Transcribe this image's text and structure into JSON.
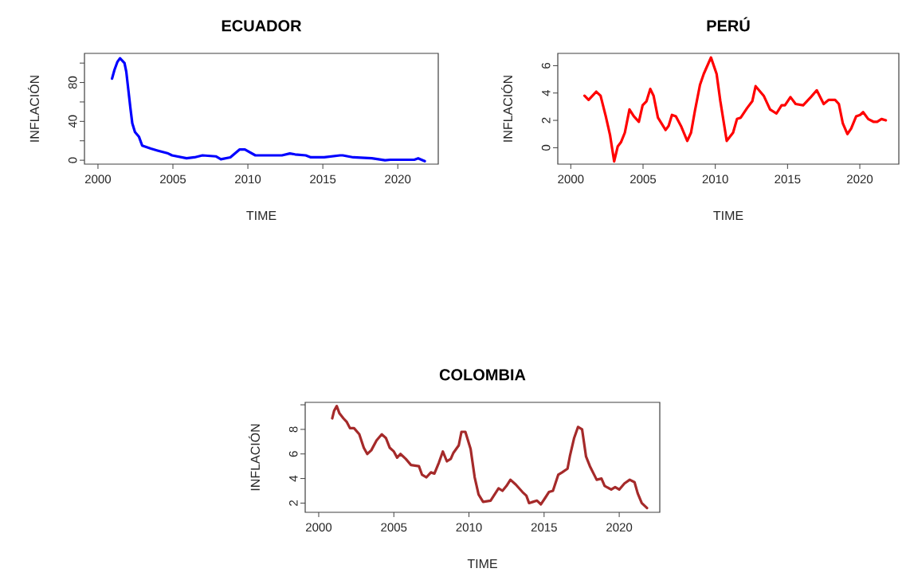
{
  "chart_data": [
    {
      "type": "line",
      "title": "ECUADOR",
      "xlabel": "TIME",
      "ylabel": "INFLACIÓN",
      "color": "#0000ff",
      "x": [
        2000.94,
        2001.1,
        2001.29,
        2001.47,
        2001.77,
        2001.89,
        2002.03,
        2002.17,
        2002.29,
        2002.47,
        2002.74,
        2002.95,
        2003.53,
        2003.97,
        2004.68,
        2004.94,
        2005.91,
        2006.44,
        2006.97,
        2007.86,
        2008.2,
        2008.83,
        2009.44,
        2009.8,
        2010.5,
        2012.27,
        2012.8,
        2013.15,
        2013.86,
        2014.2,
        2015.09,
        2016.15,
        2016.33,
        2017.03,
        2018.27,
        2019.15,
        2019.5,
        2021.1,
        2021.36,
        2021.8
      ],
      "values": [
        84,
        93,
        101,
        105,
        100,
        91,
        72,
        53,
        38,
        29,
        24,
        15,
        12,
        10,
        7,
        5,
        2,
        3,
        5,
        4,
        1,
        3,
        11,
        11,
        5,
        5,
        7,
        6,
        5,
        3,
        3,
        5,
        5,
        3,
        2,
        0,
        0.5,
        0.5,
        2,
        -1
      ],
      "xlim": [
        1999.1,
        2022.7
      ],
      "ylim": [
        -4,
        110
      ],
      "xticks": [
        2000,
        2005,
        2010,
        2015,
        2020
      ],
      "yticks": [
        0,
        {
          "value": 20,
          "label": null
        },
        40,
        {
          "value": 60,
          "label": null
        },
        80,
        {
          "value": 100,
          "label": null
        }
      ]
    },
    {
      "type": "line",
      "title": "PERÚ",
      "xlabel": "TIME",
      "ylabel": "INFLACIÓN",
      "color": "#ff0000",
      "x": [
        2000.95,
        2001.23,
        2001.76,
        2002.06,
        2002.42,
        2002.72,
        2003.0,
        2003.25,
        2003.47,
        2003.74,
        2004.06,
        2004.36,
        2004.71,
        2004.97,
        2005.24,
        2005.5,
        2005.73,
        2006.03,
        2006.56,
        2006.77,
        2007.0,
        2007.27,
        2007.62,
        2008.06,
        2008.32,
        2008.59,
        2008.94,
        2009.2,
        2009.7,
        2010.09,
        2010.35,
        2010.79,
        2011.23,
        2011.5,
        2011.76,
        2012.2,
        2012.56,
        2012.79,
        2013.35,
        2013.79,
        2014.23,
        2014.59,
        2014.82,
        2015.2,
        2015.56,
        2016.08,
        2016.61,
        2017.02,
        2017.5,
        2017.85,
        2018.29,
        2018.55,
        2018.82,
        2019.14,
        2019.4,
        2019.75,
        2020.02,
        2020.23,
        2020.58,
        2020.94,
        2021.2,
        2021.5,
        2021.8
      ],
      "values": [
        3.8,
        3.5,
        4.1,
        3.8,
        2.3,
        0.9,
        -1.0,
        0.1,
        0.4,
        1.1,
        2.8,
        2.3,
        1.9,
        3.1,
        3.4,
        4.3,
        3.8,
        2.2,
        1.3,
        1.6,
        2.4,
        2.3,
        1.6,
        0.5,
        1.1,
        2.7,
        4.6,
        5.4,
        6.6,
        5.4,
        3.4,
        0.5,
        1.1,
        2.1,
        2.2,
        2.9,
        3.4,
        4.5,
        3.8,
        2.8,
        2.5,
        3.1,
        3.1,
        3.7,
        3.2,
        3.1,
        3.7,
        4.2,
        3.2,
        3.5,
        3.5,
        3.2,
        1.8,
        1.0,
        1.4,
        2.3,
        2.4,
        2.6,
        2.1,
        1.9,
        1.9,
        2.1,
        2.0
      ],
      "xlim": [
        1999.1,
        2022.7
      ],
      "ylim": [
        -1.2,
        6.9
      ],
      "xticks": [
        2000,
        2005,
        2010,
        2015,
        2020
      ],
      "yticks": [
        0,
        2,
        4,
        6
      ]
    },
    {
      "type": "line",
      "title": "COLOMBIA",
      "xlabel": "TIME",
      "ylabel": "INFLACIÓN",
      "color": "#a52a2a",
      "x": [
        2000.9,
        2001.02,
        2001.2,
        2001.38,
        2001.64,
        2001.87,
        2002.08,
        2002.35,
        2002.7,
        2003.0,
        2003.23,
        2003.5,
        2003.85,
        2004.2,
        2004.47,
        2004.73,
        2005.0,
        2005.22,
        2005.44,
        2005.79,
        2006.14,
        2006.67,
        2006.88,
        2007.17,
        2007.47,
        2007.7,
        2008.0,
        2008.26,
        2008.53,
        2008.79,
        2008.97,
        2009.32,
        2009.5,
        2009.76,
        2010.11,
        2010.38,
        2010.64,
        2010.94,
        2011.44,
        2011.97,
        2012.23,
        2012.5,
        2012.76,
        2013.12,
        2013.56,
        2013.82,
        2014.0,
        2014.26,
        2014.53,
        2014.79,
        2015.06,
        2015.32,
        2015.59,
        2015.94,
        2016.2,
        2016.56,
        2016.73,
        2017.0,
        2017.26,
        2017.53,
        2017.79,
        2018.05,
        2018.5,
        2018.82,
        2019.03,
        2019.47,
        2019.73,
        2020.0,
        2020.35,
        2020.7,
        2021.02,
        2021.23,
        2021.5,
        2021.85
      ],
      "values": [
        8.9,
        9.5,
        9.9,
        9.3,
        8.9,
        8.6,
        8.1,
        8.1,
        7.6,
        6.5,
        6.0,
        6.3,
        7.1,
        7.6,
        7.3,
        6.5,
        6.2,
        5.7,
        6.0,
        5.6,
        5.1,
        5.0,
        4.3,
        4.1,
        4.5,
        4.4,
        5.3,
        6.2,
        5.4,
        5.6,
        6.1,
        6.7,
        7.8,
        7.8,
        6.4,
        4.1,
        2.7,
        2.1,
        2.2,
        3.2,
        3.0,
        3.4,
        3.9,
        3.5,
        2.9,
        2.6,
        2.0,
        2.1,
        2.2,
        1.9,
        2.4,
        2.9,
        3.0,
        4.3,
        4.5,
        4.8,
        5.9,
        7.3,
        8.2,
        8.0,
        5.8,
        5.0,
        3.9,
        4.0,
        3.4,
        3.1,
        3.3,
        3.1,
        3.6,
        3.9,
        3.7,
        2.8,
        2.0,
        1.6
      ],
      "xlim": [
        1999.1,
        2022.7
      ],
      "ylim": [
        1.25,
        10.2
      ],
      "xticks": [
        2000,
        2005,
        2010,
        2015,
        2020
      ],
      "yticks": [
        2,
        4,
        6,
        8,
        {
          "value": 10,
          "label": null
        }
      ]
    }
  ]
}
